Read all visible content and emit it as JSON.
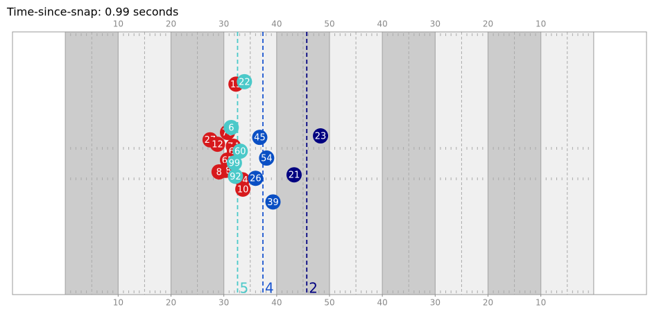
{
  "chart_data": {
    "type": "scatter",
    "title": "Time-since-snap: 0.99 seconds",
    "xlim": [
      -10,
      110
    ],
    "ylim": [
      0,
      53.3
    ],
    "xticks": [
      10,
      20,
      30,
      40,
      50,
      {
        "value": 60,
        "label": "40"
      },
      {
        "value": 70,
        "label": "30"
      },
      {
        "value": 80,
        "label": "20"
      },
      {
        "value": 90,
        "label": "10"
      }
    ],
    "vlines": [
      {
        "x": 32.6,
        "label": "5",
        "color": "#4bc9c9"
      },
      {
        "x": 37.4,
        "label": "4",
        "color": "#1a55d0"
      },
      {
        "x": 45.7,
        "label": "2",
        "color": "#000080"
      }
    ],
    "series": [
      {
        "color": "#d7191c",
        "x": [
          32.3,
          27.4,
          28.8,
          30.7,
          31.8,
          32.0,
          30.7,
          30.3,
          29.1,
          33.5,
          33.6
        ],
        "y": [
          42.7,
          31.4,
          30.5,
          32.9,
          30.1,
          29.1,
          27.3,
          25.2,
          24.9,
          23.3,
          21.4
        ],
        "labels": [
          13,
          27,
          12,
          76,
          74,
          66,
          65,
          78,
          8,
          14,
          10
        ]
      },
      {
        "color": "#4bc9c9",
        "x": [
          33.9,
          31.4,
          33.1,
          32.0,
          32.2
        ],
        "y": [
          43.2,
          33.9,
          29.1,
          26.7,
          24.0
        ],
        "labels": [
          22,
          6,
          60,
          99,
          92
        ]
      },
      {
        "color": "#0a4fc4",
        "x": [
          36.8,
          38.1,
          36.0,
          39.3
        ],
        "y": [
          31.9,
          27.7,
          23.6,
          18.8
        ],
        "labels": [
          45,
          54,
          26,
          39
        ]
      },
      {
        "color": "#000080",
        "x": [
          48.3,
          43.3
        ],
        "y": [
          32.2,
          24.3
        ],
        "labels": [
          23,
          21
        ]
      }
    ]
  }
}
